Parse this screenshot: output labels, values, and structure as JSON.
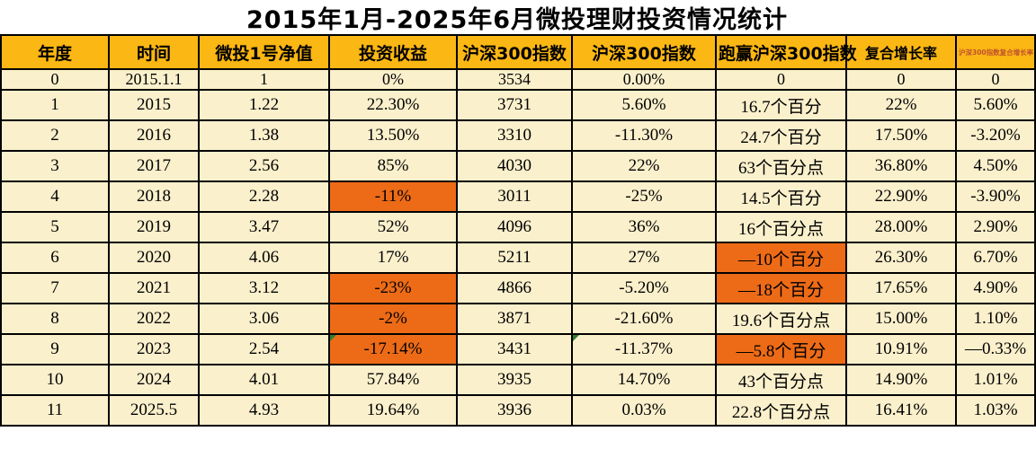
{
  "title": "2015年1月-2025年6月微投理财投资情况统计",
  "columns": [
    {
      "label": "年度"
    },
    {
      "label": "时间"
    },
    {
      "label": "微投1号净值"
    },
    {
      "label": "投资收益"
    },
    {
      "label": "沪深300指数"
    },
    {
      "label": "沪深300指数"
    },
    {
      "label": "跑赢沪深300指数"
    },
    {
      "label": "复合增长率"
    },
    {
      "label": "沪深300指数复合增长率"
    }
  ],
  "rows": [
    {
      "cells": [
        "0",
        "2015.1.1",
        "1",
        "0%",
        "3534",
        "0.00%",
        "0",
        "0",
        "0"
      ],
      "orange": [],
      "flags": []
    },
    {
      "cells": [
        "1",
        "2015",
        "1.22",
        "22.30%",
        "3731",
        "5.60%",
        "16.7个百分",
        "22%",
        "5.60%"
      ],
      "orange": [],
      "flags": []
    },
    {
      "cells": [
        "2",
        "2016",
        "1.38",
        "13.50%",
        "3310",
        "-11.30%",
        "24.7个百分",
        "17.50%",
        "-3.20%"
      ],
      "orange": [],
      "flags": []
    },
    {
      "cells": [
        "3",
        "2017",
        "2.56",
        "85%",
        "4030",
        "22%",
        "63个百分点",
        "36.80%",
        "4.50%"
      ],
      "orange": [],
      "flags": []
    },
    {
      "cells": [
        "4",
        "2018",
        "2.28",
        "-11%",
        "3011",
        "-25%",
        "14.5个百分",
        "22.90%",
        "-3.90%"
      ],
      "orange": [
        3
      ],
      "flags": []
    },
    {
      "cells": [
        "5",
        "2019",
        "3.47",
        "52%",
        "4096",
        "36%",
        "16个百分点",
        "28.00%",
        "2.90%"
      ],
      "orange": [],
      "flags": []
    },
    {
      "cells": [
        "6",
        "2020",
        "4.06",
        "17%",
        "5211",
        "27%",
        "—10个百分",
        "26.30%",
        "6.70%"
      ],
      "orange": [
        6
      ],
      "flags": []
    },
    {
      "cells": [
        "7",
        "2021",
        "3.12",
        "-23%",
        "4866",
        "-5.20%",
        "—18个百分",
        "17.65%",
        "4.90%"
      ],
      "orange": [
        3,
        6
      ],
      "flags": []
    },
    {
      "cells": [
        "8",
        "2022",
        "3.06",
        "-2%",
        "3871",
        "-21.60%",
        "19.6个百分点",
        "15.00%",
        "1.10%"
      ],
      "orange": [
        3
      ],
      "flags": []
    },
    {
      "cells": [
        "9",
        "2023",
        "2.54",
        "-17.14%",
        "3431",
        "-11.37%",
        "—5.8个百分",
        "10.91%",
        "—0.33%"
      ],
      "orange": [
        3,
        6
      ],
      "flags": [
        3,
        5
      ]
    },
    {
      "cells": [
        "10",
        "2024",
        "4.01",
        "57.84%",
        "3935",
        "14.70%",
        "43个百分点",
        "14.90%",
        "1.01%"
      ],
      "orange": [],
      "flags": []
    },
    {
      "cells": [
        "11",
        "2025.5",
        "4.93",
        "19.64%",
        "3936",
        "0.03%",
        "22.8个百分点",
        "16.41%",
        "1.03%"
      ],
      "orange": [],
      "flags": []
    }
  ],
  "colors": {
    "header_bg": "#FBB713",
    "cell_bg": "#FBF0CC",
    "highlight_bg": "#ED6B17",
    "border": "#000000",
    "flag_green": "#2F7D32",
    "small_header_text": "#C0512E"
  },
  "chart_data": {
    "type": "table",
    "title": "2015年1月-2025年6月微投理财投资情况统计",
    "columns": [
      "年度",
      "时间",
      "微投1号净值",
      "投资收益",
      "沪深300指数",
      "沪深300指数",
      "跑赢沪深300指数",
      "复合增长率",
      "沪深300指数复合增长率"
    ],
    "rows": [
      [
        "0",
        "2015.1.1",
        "1",
        "0%",
        "3534",
        "0.00%",
        "0",
        "0",
        "0"
      ],
      [
        "1",
        "2015",
        "1.22",
        "22.30%",
        "3731",
        "5.60%",
        "16.7个百分",
        "22%",
        "5.60%"
      ],
      [
        "2",
        "2016",
        "1.38",
        "13.50%",
        "3310",
        "-11.30%",
        "24.7个百分",
        "17.50%",
        "-3.20%"
      ],
      [
        "3",
        "2017",
        "2.56",
        "85%",
        "4030",
        "22%",
        "63个百分点",
        "36.80%",
        "4.50%"
      ],
      [
        "4",
        "2018",
        "2.28",
        "-11%",
        "3011",
        "-25%",
        "14.5个百分",
        "22.90%",
        "-3.90%"
      ],
      [
        "5",
        "2019",
        "3.47",
        "52%",
        "4096",
        "36%",
        "16个百分点",
        "28.00%",
        "2.90%"
      ],
      [
        "6",
        "2020",
        "4.06",
        "17%",
        "5211",
        "27%",
        "—10个百分",
        "26.30%",
        "6.70%"
      ],
      [
        "7",
        "2021",
        "3.12",
        "-23%",
        "4866",
        "-5.20%",
        "—18个百分",
        "17.65%",
        "4.90%"
      ],
      [
        "8",
        "2022",
        "3.06",
        "-2%",
        "3871",
        "-21.60%",
        "19.6个百分点",
        "15.00%",
        "1.10%"
      ],
      [
        "9",
        "2023",
        "2.54",
        "-17.14%",
        "3431",
        "-11.37%",
        "—5.8个百分",
        "10.91%",
        "—0.33%"
      ],
      [
        "10",
        "2024",
        "4.01",
        "57.84%",
        "3935",
        "14.70%",
        "43个百分点",
        "14.90%",
        "1.01%"
      ],
      [
        "11",
        "2025.5",
        "4.93",
        "19.64%",
        "3936",
        "0.03%",
        "22.8个百分点",
        "16.41%",
        "1.03%"
      ]
    ],
    "highlighted_orange_cells": [
      {
        "row": 4,
        "col": 3
      },
      {
        "row": 6,
        "col": 6
      },
      {
        "row": 7,
        "col": 3
      },
      {
        "row": 7,
        "col": 6
      },
      {
        "row": 8,
        "col": 3
      },
      {
        "row": 9,
        "col": 3
      },
      {
        "row": 9,
        "col": 6
      }
    ]
  }
}
